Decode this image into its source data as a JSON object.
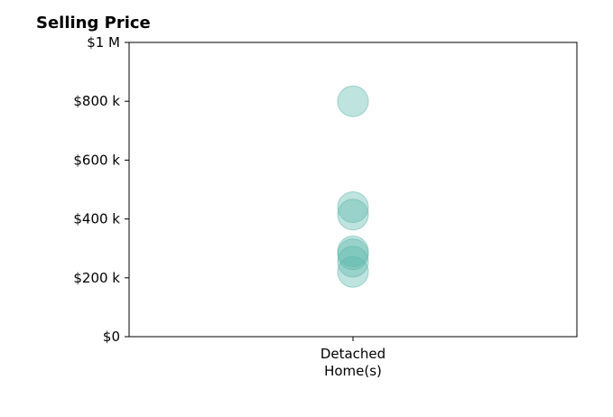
{
  "chart_data": {
    "type": "scatter",
    "title": "Selling Price",
    "xlabel": "",
    "ylabel": "",
    "categories": [
      "Detached Home(s)"
    ],
    "category_label_lines": [
      "Detached",
      "Home(s)"
    ],
    "y_ticks": [
      {
        "value": 0,
        "label": "$0"
      },
      {
        "value": 200000,
        "label": "$200 k"
      },
      {
        "value": 400000,
        "label": "$400 k"
      },
      {
        "value": 600000,
        "label": "$600 k"
      },
      {
        "value": 800000,
        "label": "$800 k"
      },
      {
        "value": 1000000,
        "label": "$1 M"
      }
    ],
    "ylim": [
      0,
      1000000
    ],
    "grid": false,
    "series": [
      {
        "category": "Detached Home(s)",
        "values": [
          800000,
          440000,
          415000,
          290000,
          280000,
          255000,
          220000
        ]
      }
    ],
    "marker_color": "#5fb8ad"
  }
}
